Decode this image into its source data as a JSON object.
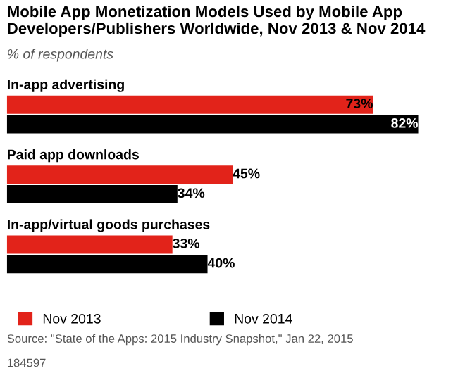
{
  "chart_data": {
    "type": "bar",
    "orientation": "horizontal",
    "title": "Mobile App Monetization Models Used by Mobile App Developers/Publishers Worldwide, Nov 2013 & Nov 2014",
    "subtitle": "% of respondents",
    "categories": [
      "In-app advertising",
      "Paid app downloads",
      "In-app/virtual goods purchases"
    ],
    "series": [
      {
        "name": "Nov 2013",
        "color": "#e2231a",
        "values": [
          73,
          45,
          33
        ],
        "value_labels": [
          "73%",
          "45%",
          "33%"
        ]
      },
      {
        "name": "Nov 2014",
        "color": "#000000",
        "values": [
          82,
          34,
          40
        ],
        "value_labels": [
          "82%",
          "34%",
          "40%"
        ]
      }
    ],
    "legend": "bottom",
    "annotations": [
      "Source: \"State of the Apps: 2015 Industry Snapshot,\" Jan 22, 2015",
      "184597"
    ]
  }
}
